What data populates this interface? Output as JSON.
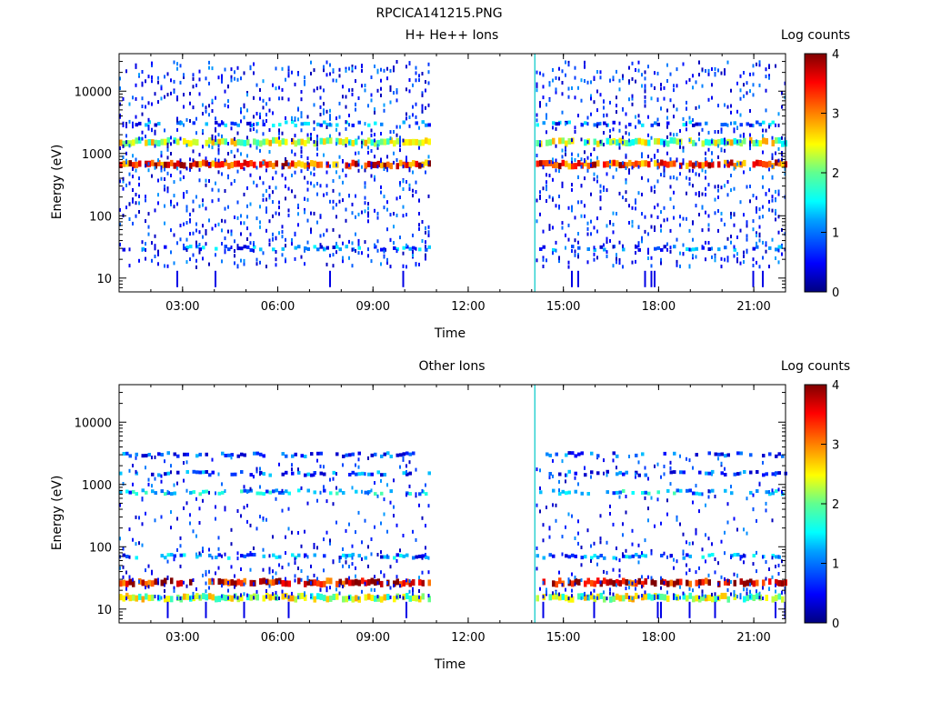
{
  "file_title": "RPCICA141215.PNG",
  "colorscale": {
    "stops": [
      "#000080",
      "#0000ff",
      "#00a0ff",
      "#00ffff",
      "#60ff90",
      "#ffff00",
      "#ff8000",
      "#ff0000",
      "#800000"
    ]
  },
  "chart_data": [
    {
      "type": "heatmap",
      "title": "H+ He++ Ions",
      "xlabel": "Time",
      "ylabel": "Energy (eV)",
      "colorbar_label": "Log counts",
      "x_range_hours": [
        1.0,
        22.0
      ],
      "x_ticks": [
        "03:00",
        "06:00",
        "09:00",
        "12:00",
        "15:00",
        "18:00",
        "21:00"
      ],
      "y_scale": "log",
      "y_range": [
        6,
        40000
      ],
      "y_ticks": [
        "10",
        "100",
        "1000",
        "10000"
      ],
      "colorbar_range": [
        0,
        4
      ],
      "colorbar_ticks": [
        "0",
        "1",
        "2",
        "3",
        "4"
      ],
      "data_gaps_hours": [
        [
          10.8,
          14.1
        ]
      ],
      "spike_hour": 14.1,
      "bands": [
        {
          "energy_eV": 700,
          "log_counts": 3.3
        },
        {
          "energy_eV": 1600,
          "log_counts": 2.2
        },
        {
          "energy_eV": 3000,
          "log_counts": 0.9
        },
        {
          "energy_eV": 30,
          "log_counts": 0.8
        }
      ]
    },
    {
      "type": "heatmap",
      "title": "Other Ions",
      "xlabel": "Time",
      "ylabel": "Energy (eV)",
      "colorbar_label": "Log counts",
      "x_range_hours": [
        1.0,
        22.0
      ],
      "x_ticks": [
        "03:00",
        "06:00",
        "09:00",
        "12:00",
        "15:00",
        "18:00",
        "21:00"
      ],
      "y_scale": "log",
      "y_range": [
        6,
        40000
      ],
      "y_ticks": [
        "10",
        "100",
        "1000",
        "10000"
      ],
      "colorbar_range": [
        0,
        4
      ],
      "colorbar_ticks": [
        "0",
        "1",
        "2",
        "3",
        "4"
      ],
      "data_gaps_hours": [
        [
          10.8,
          14.1
        ]
      ],
      "spike_hour": 14.1,
      "bands": [
        {
          "energy_eV": 28,
          "log_counts": 3.6
        },
        {
          "energy_eV": 16,
          "log_counts": 2.2
        },
        {
          "energy_eV": 70,
          "log_counts": 1.0
        },
        {
          "energy_eV": 750,
          "log_counts": 1.2
        },
        {
          "energy_eV": 1500,
          "log_counts": 0.6
        },
        {
          "energy_eV": 3000,
          "log_counts": 0.5
        }
      ]
    }
  ]
}
